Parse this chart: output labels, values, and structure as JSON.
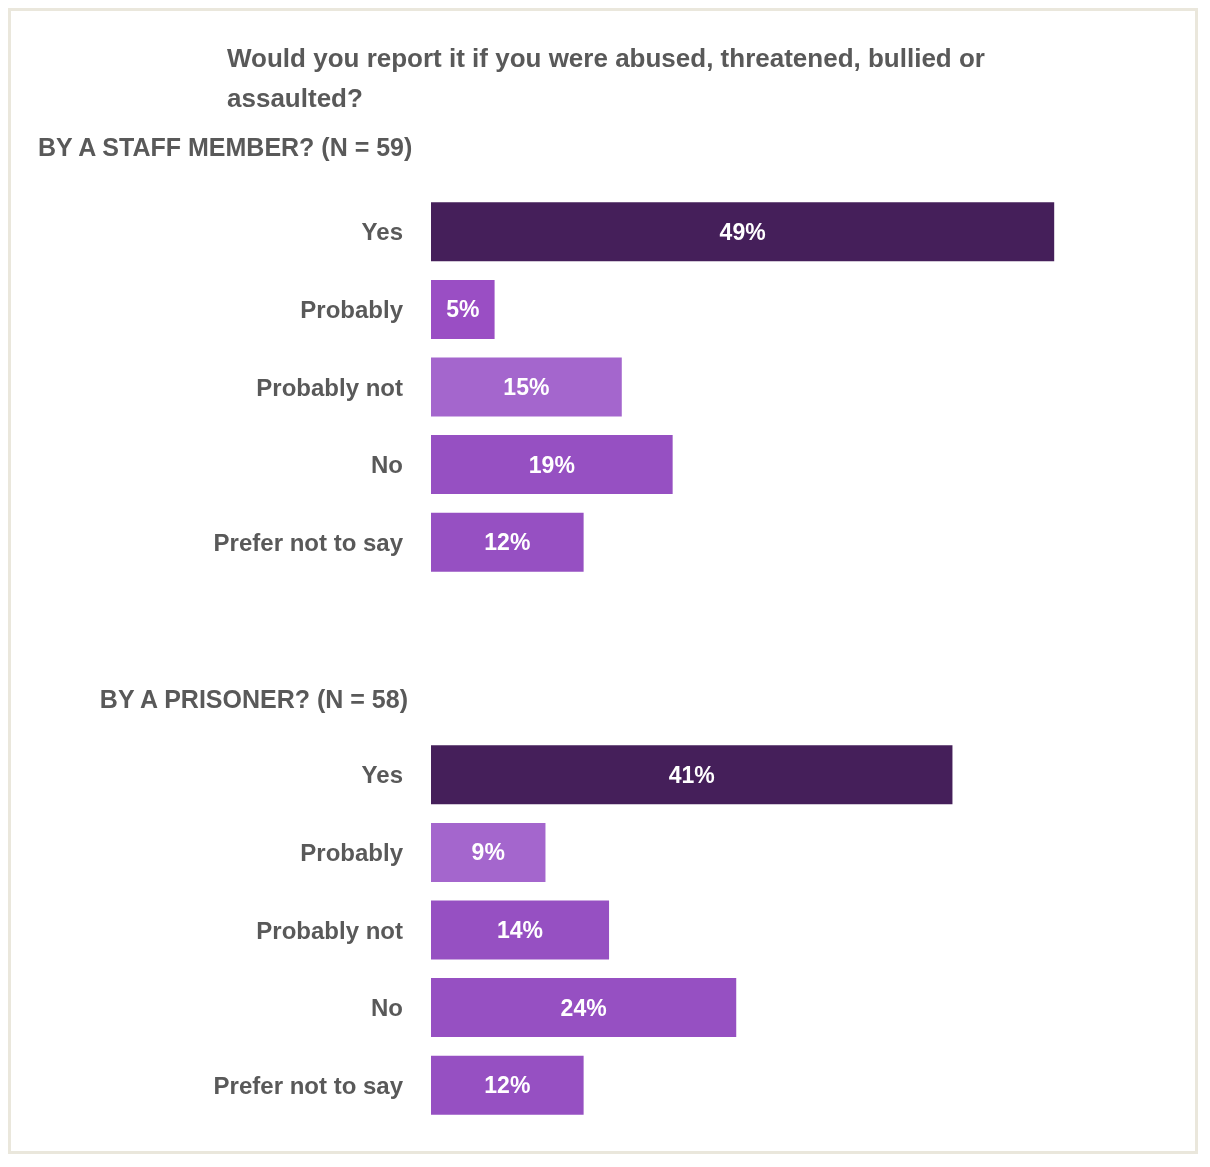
{
  "chart_data": [
    {
      "type": "bar",
      "orientation": "horizontal",
      "title": "Would you report it if you were abused, threatened, bullied or\nassaulted?",
      "subtitle": "BY A STAFF MEMBER? (N = 59)",
      "categories": [
        "Yes",
        "Probably",
        "Probably not",
        "No",
        "Prefer not to say"
      ],
      "values": [
        49,
        5,
        15,
        19,
        12
      ],
      "colors": [
        "#451f5a",
        "#9a4ec4",
        "#a466cd",
        "#9650c2",
        "#9650c2"
      ],
      "value_labels": [
        "49%",
        "5%",
        "15%",
        "19%",
        "12%"
      ]
    },
    {
      "type": "bar",
      "orientation": "horizontal",
      "title": "BY A PRISONER? (N = 58)",
      "categories": [
        "Yes",
        "Probably",
        "Probably not",
        "No",
        "Prefer not to say"
      ],
      "values": [
        41,
        9,
        14,
        24,
        12
      ],
      "colors": [
        "#451f5a",
        "#a466cd",
        "#9650c2",
        "#9650c2",
        "#9650c2"
      ],
      "value_labels": [
        "41%",
        "9%",
        "14%",
        "24%",
        "12%"
      ]
    }
  ]
}
